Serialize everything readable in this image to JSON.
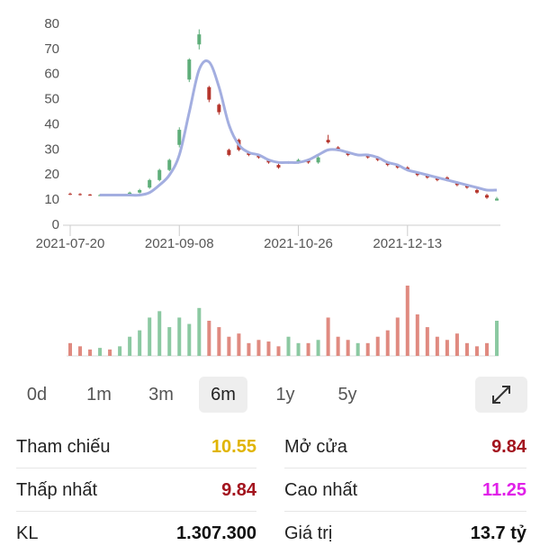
{
  "chart_data": {
    "type": "candlestick",
    "categories": [
      "2021-07-20",
      null,
      null,
      null,
      null,
      null,
      null,
      null,
      null,
      null,
      null,
      "2021-09-08",
      null,
      null,
      null,
      null,
      null,
      null,
      null,
      null,
      null,
      null,
      null,
      "2021-10-26",
      null,
      null,
      null,
      null,
      null,
      null,
      null,
      null,
      null,
      null,
      "2021-12-13",
      null,
      null,
      null,
      null,
      null,
      null,
      null,
      null,
      null
    ],
    "open": [
      12.5,
      12.4,
      12.2,
      12,
      12,
      11.8,
      12,
      13,
      15,
      18,
      22,
      32,
      58,
      72,
      55,
      48,
      30,
      34,
      29,
      28,
      26,
      24,
      25,
      25,
      26,
      25,
      34,
      31,
      29,
      28,
      28,
      27,
      25,
      24,
      23,
      21,
      20,
      19,
      19,
      17,
      16,
      14,
      12,
      9.84
    ],
    "high": [
      13,
      12.8,
      12.5,
      12.4,
      12.3,
      12.3,
      13.4,
      14.5,
      18.5,
      22.5,
      26.5,
      39,
      66.5,
      78,
      55.5,
      48.5,
      30.5,
      34.5,
      29.5,
      28.5,
      26.5,
      24.5,
      25.5,
      26.5,
      26.5,
      27.5,
      36,
      31.5,
      29.5,
      28.5,
      28.5,
      27.5,
      25.5,
      24.5,
      23.5,
      21.5,
      20.5,
      19.5,
      19.5,
      17.5,
      16.5,
      14.5,
      12.5,
      11.25
    ],
    "low": [
      12,
      11.8,
      11.7,
      11.6,
      11.5,
      11.5,
      11.8,
      12.7,
      14.5,
      17.5,
      21.5,
      31,
      57,
      70,
      49,
      44,
      27.5,
      29.5,
      27.5,
      26.5,
      24.5,
      22.5,
      24.5,
      24.5,
      24.5,
      24.5,
      32.5,
      29.5,
      27.5,
      27.5,
      26.5,
      25.5,
      23.5,
      22.5,
      21.5,
      19.5,
      18.5,
      17.5,
      17.5,
      15.5,
      14.5,
      12.5,
      10.5,
      9.84
    ],
    "close": [
      12.4,
      12.2,
      12,
      12,
      11.8,
      12,
      13,
      14,
      18,
      22,
      26,
      38,
      66,
      76,
      50,
      45,
      28,
      30,
      28,
      27,
      25,
      23,
      25,
      26,
      25,
      27,
      33,
      30,
      28,
      28,
      27,
      26,
      24,
      23,
      22,
      20,
      19,
      18,
      18,
      16,
      15,
      13,
      11,
      10.6
    ],
    "up_color": "#5fae7a",
    "down_color": "#b5352c",
    "line": {
      "color": "#a3aee0",
      "values": [
        null,
        null,
        null,
        12,
        12,
        12,
        12,
        12,
        13,
        16,
        20,
        28,
        45,
        62,
        65,
        55,
        40,
        32,
        29,
        28,
        26,
        25,
        25,
        25,
        26,
        28,
        30,
        30,
        29,
        28,
        28,
        27,
        25,
        24,
        22,
        21,
        20,
        19,
        18,
        17,
        16,
        15,
        14,
        14
      ]
    },
    "volume": [
      40,
      30,
      20,
      25,
      20,
      30,
      60,
      80,
      120,
      140,
      90,
      120,
      100,
      150,
      110,
      90,
      60,
      70,
      40,
      50,
      45,
      30,
      60,
      40,
      40,
      50,
      120,
      60,
      50,
      40,
      40,
      60,
      80,
      120,
      220,
      130,
      90,
      60,
      50,
      70,
      40,
      30,
      40,
      110
    ],
    "volume_up_color": "#8cc9a2",
    "volume_down_color": "#e08a80",
    "ylim": [
      0,
      80
    ],
    "yticks": [
      0,
      10,
      20,
      30,
      40,
      50,
      60,
      70,
      80
    ],
    "grid": false
  },
  "periods": {
    "items": [
      "0d",
      "1m",
      "3m",
      "6m",
      "1y",
      "5y"
    ],
    "selected": "6m"
  },
  "stats": [
    [
      {
        "label": "Tham chiếu",
        "value": "10.55",
        "color": "#e0b400"
      },
      {
        "label": "Mở cửa",
        "value": "9.84",
        "color": "#a3141e"
      }
    ],
    [
      {
        "label": "Thấp nhất",
        "value": "9.84",
        "color": "#a3141e"
      },
      {
        "label": "Cao nhất",
        "value": "11.25",
        "color": "#e020e8"
      }
    ],
    [
      {
        "label": "KL",
        "value": "1.307.300",
        "color": "#111111"
      },
      {
        "label": "Giá trị",
        "value": "13.7 tỷ",
        "color": "#111111"
      }
    ]
  ]
}
